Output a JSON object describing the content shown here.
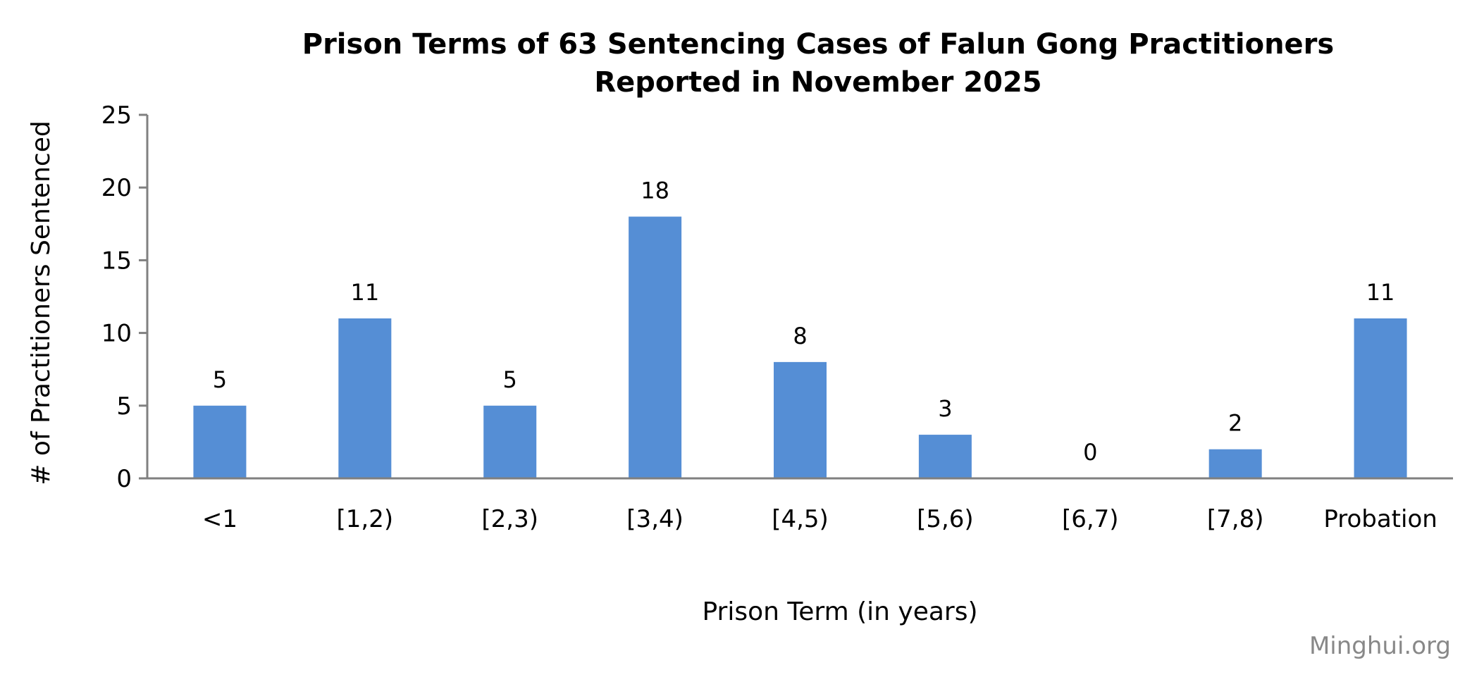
{
  "chart_data": {
    "type": "bar",
    "title": [
      "Prison Terms of 63 Sentencing Cases of Falun Gong Practitioners",
      "Reported in November 2025"
    ],
    "xlabel": "Prison Term (in years)",
    "ylabel": "# of Practitioners Sentenced",
    "categories": [
      "<1",
      "[1,2)",
      "[2,3)",
      "[3,4)",
      "[4,5)",
      "[5,6)",
      "[6,7)",
      "[7,8)",
      "Probation"
    ],
    "values": [
      5,
      11,
      5,
      18,
      8,
      3,
      0,
      2,
      11
    ],
    "ylim": [
      0,
      25
    ],
    "yticks": [
      0,
      5,
      10,
      15,
      20,
      25
    ],
    "grid": false,
    "legend": "none",
    "data_labels": true,
    "bar_color": "#558ED5",
    "axis_color": "#808080"
  },
  "watermark": "Minghui.org"
}
